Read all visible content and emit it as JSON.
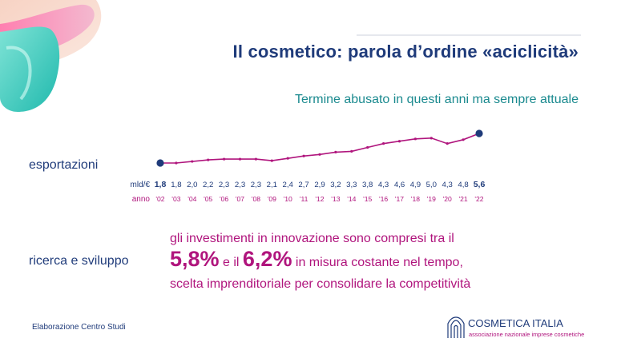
{
  "slide": {
    "title": "Il cosmetico: parola d’ordine «aciclicità»",
    "subtitle": "Termine abusato in questi anni ma sempre attuale"
  },
  "export_section": {
    "label": "esportazioni"
  },
  "chart_data": {
    "type": "line",
    "title": "",
    "xlabel": "anno",
    "ylabel": "mld/€",
    "row_labels": {
      "values": "mld/€",
      "years": "anno"
    },
    "x": [
      "'02",
      "'03",
      "'04",
      "'05",
      "'06",
      "'07",
      "'08",
      "'09",
      "'10",
      "'11",
      "'12",
      "'13",
      "'14",
      "'15",
      "'16",
      "'17",
      "'18",
      "'19",
      "'20",
      "'21",
      "'22"
    ],
    "y": [
      1.8,
      1.8,
      2.0,
      2.2,
      2.3,
      2.3,
      2.3,
      2.1,
      2.4,
      2.7,
      2.9,
      3.2,
      3.3,
      3.8,
      4.3,
      4.6,
      4.9,
      5.0,
      4.3,
      4.8,
      5.6
    ],
    "value_labels": [
      "1,8",
      "1,8",
      "2,0",
      "2,2",
      "2,3",
      "2,3",
      "2,3",
      "2,1",
      "2,4",
      "2,7",
      "2,9",
      "3,2",
      "3,3",
      "3,8",
      "4,3",
      "4,6",
      "4,9",
      "5,0",
      "4,3",
      "4,8",
      "5,6"
    ],
    "highlighted": [
      0,
      20
    ],
    "ylim": [
      1.8,
      5.6
    ],
    "grid": false,
    "line_color": "#b0157d",
    "endpoint_color": "#1f3b7a",
    "value_label_color": "#1f3b7a",
    "year_label_color": "#b0157d"
  },
  "rd_section": {
    "label": "ricerca e sviluppo",
    "line1": "gli investimenti in innovazione sono compresi tra il",
    "pct_low": "5,8%",
    "connector": "e il",
    "pct_high": "6,2%",
    "line2_tail": "in misura costante nel tempo,",
    "line3": "scelta imprenditoriale per consolidare la competitività"
  },
  "footer": {
    "note": "Elaborazione Centro Studi",
    "logo_name": "COSMETICA ITALIA",
    "logo_tagline": "associazione nazionale imprese cosmetiche"
  },
  "colors": {
    "navy": "#1f3b7a",
    "magenta": "#b0157d",
    "teal": "#1b8a8f"
  }
}
